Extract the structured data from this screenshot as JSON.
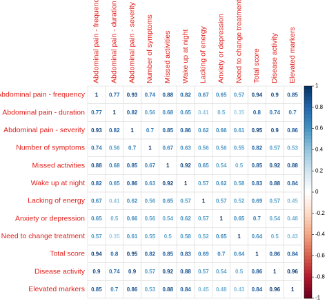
{
  "chart_data": {
    "type": "correlogram",
    "categories": [
      "Abdominal pain - frequency",
      "Abdominal pain - duration",
      "Abdominal pain - severity",
      "Number of symptoms",
      "Missed activities",
      "Wake up at night",
      "Lacking of energy",
      "Anxiety or depression",
      "Need to change treatment",
      "Total score",
      "Disease activity",
      "Elevated markers"
    ],
    "values": [
      [
        1,
        0.77,
        0.93,
        0.74,
        0.88,
        0.82,
        0.67,
        0.65,
        0.57,
        0.94,
        0.9,
        0.85
      ],
      [
        0.77,
        1,
        0.82,
        0.56,
        0.68,
        0.65,
        0.41,
        0.5,
        0.35,
        0.8,
        0.74,
        0.7
      ],
      [
        0.93,
        0.82,
        1,
        0.7,
        0.85,
        0.86,
        0.62,
        0.66,
        0.61,
        0.95,
        0.9,
        0.86
      ],
      [
        0.74,
        0.56,
        0.7,
        1,
        0.67,
        0.63,
        0.56,
        0.56,
        0.55,
        0.82,
        0.57,
        0.53
      ],
      [
        0.88,
        0.68,
        0.85,
        0.67,
        1,
        0.92,
        0.65,
        0.54,
        0.5,
        0.85,
        0.92,
        0.88
      ],
      [
        0.82,
        0.65,
        0.86,
        0.63,
        0.92,
        1,
        0.57,
        0.62,
        0.58,
        0.83,
        0.88,
        0.84
      ],
      [
        0.67,
        0.41,
        0.62,
        0.56,
        0.65,
        0.57,
        1,
        0.57,
        0.52,
        0.69,
        0.57,
        0.45
      ],
      [
        0.65,
        0.5,
        0.66,
        0.56,
        0.54,
        0.62,
        0.57,
        1,
        0.65,
        0.7,
        0.54,
        0.48
      ],
      [
        0.57,
        0.35,
        0.61,
        0.55,
        0.5,
        0.58,
        0.52,
        0.65,
        1,
        0.64,
        0.5,
        0.43
      ],
      [
        0.94,
        0.8,
        0.95,
        0.82,
        0.85,
        0.83,
        0.69,
        0.7,
        0.64,
        1,
        0.86,
        0.84
      ],
      [
        0.9,
        0.74,
        0.9,
        0.57,
        0.92,
        0.88,
        0.57,
        0.54,
        0.5,
        0.86,
        1,
        0.96
      ],
      [
        0.85,
        0.7,
        0.86,
        0.53,
        0.88,
        0.84,
        0.45,
        0.48,
        0.43,
        0.84,
        0.96,
        1
      ]
    ],
    "clim": [
      -1,
      1
    ],
    "cticks": [
      1,
      0.8,
      0.6,
      0.4,
      0.2,
      0,
      -0.2,
      -0.4,
      -0.6,
      -0.8,
      -1
    ],
    "colormap": [
      "#67001F",
      "#B2182B",
      "#D6604D",
      "#F4A582",
      "#FDDBC7",
      "#FFFFFF",
      "#D1E5F0",
      "#92C5DE",
      "#4393C3",
      "#2166AC",
      "#053061"
    ],
    "label_color": "#e0201c"
  }
}
